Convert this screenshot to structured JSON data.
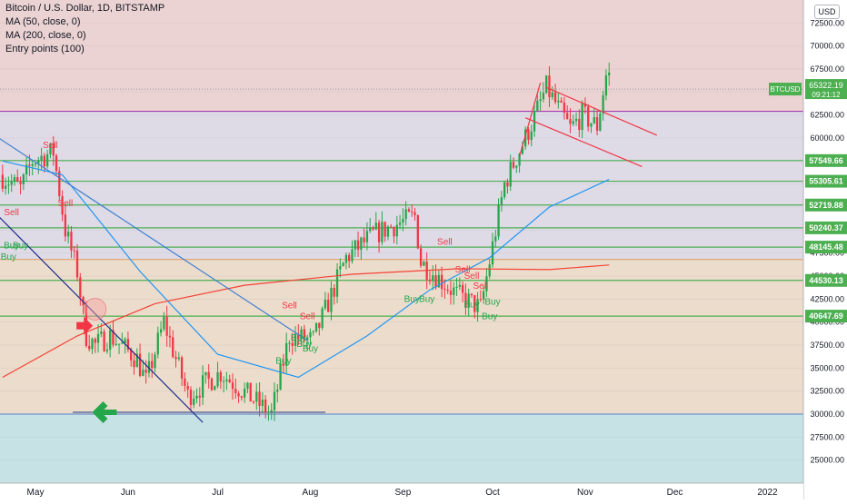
{
  "legend": {
    "title": "Bitcoin / U.S. Dollar, 1D, BITSTAMP",
    "ma50": "MA (50, close, 0)",
    "ma200": "MA (200, close, 0)",
    "entry": "Entry points (100)"
  },
  "currency_button": "USD",
  "price_tag": {
    "symbol": "BTCUSD",
    "price": "65322.19",
    "countdown": "09:21:12",
    "value": 65322.19
  },
  "chart_data": {
    "type": "candlestick",
    "title": "Bitcoin / U.S. Dollar, 1D, BITSTAMP",
    "ylim": [
      22500,
      75000
    ],
    "y_ticks": [
      25000,
      27500,
      30000,
      32500,
      35000,
      37500,
      40000,
      42500,
      45000,
      47500,
      50000,
      52500,
      55000,
      57500,
      60000,
      62500,
      65000,
      67500,
      70000,
      72500
    ],
    "x_ticks": [
      "May",
      "Jun",
      "Jul",
      "Aug",
      "Sep",
      "Oct",
      "Nov",
      "Dec",
      "2022"
    ],
    "levels": [
      {
        "value": 57549.66,
        "label": "57549.66"
      },
      {
        "value": 55305.61,
        "label": "55305.61"
      },
      {
        "value": 52719.88,
        "label": "52719.88"
      },
      {
        "value": 50240.37,
        "label": "50240.37"
      },
      {
        "value": 48145.48,
        "label": "48145.48"
      },
      {
        "value": 44530.13,
        "label": "44530.13"
      },
      {
        "value": 40647.69,
        "label": "40647.69"
      }
    ],
    "support_line": 30000,
    "zones": [
      {
        "from": 62900,
        "to": 75000,
        "color": "#ebd3d3"
      },
      {
        "from": 46800,
        "to": 62900,
        "color": "#dedbe6"
      },
      {
        "from": 30000,
        "to": 46800,
        "color": "#ebdccc"
      },
      {
        "from": 22500,
        "to": 30000,
        "color": "#c6e2e4"
      }
    ],
    "series": [
      {
        "name": "BTCUSD",
        "ohlc_keyframes": [
          {
            "date": "2021-04-20",
            "price": 56000
          },
          {
            "date": "2021-04-27",
            "price": 54500
          },
          {
            "date": "2021-05-01",
            "price": 57500
          },
          {
            "date": "2021-05-08",
            "price": 58500
          },
          {
            "date": "2021-05-12",
            "price": 50000
          },
          {
            "date": "2021-05-16",
            "price": 45500
          },
          {
            "date": "2021-05-19",
            "price": 38500
          },
          {
            "date": "2021-05-22",
            "price": 37500
          },
          {
            "date": "2021-05-27",
            "price": 38500
          },
          {
            "date": "2021-06-05",
            "price": 36000
          },
          {
            "date": "2021-06-08",
            "price": 33500
          },
          {
            "date": "2021-06-14",
            "price": 40000
          },
          {
            "date": "2021-06-22",
            "price": 32000
          },
          {
            "date": "2021-07-03",
            "price": 34500
          },
          {
            "date": "2021-07-20",
            "price": 30000
          },
          {
            "date": "2021-07-26",
            "price": 38500
          },
          {
            "date": "2021-08-03",
            "price": 38000
          },
          {
            "date": "2021-08-14",
            "price": 47000
          },
          {
            "date": "2021-08-23",
            "price": 49500
          },
          {
            "date": "2021-09-06",
            "price": 51500
          },
          {
            "date": "2021-09-08",
            "price": 46500
          },
          {
            "date": "2021-09-20",
            "price": 43000
          },
          {
            "date": "2021-09-28",
            "price": 41500
          },
          {
            "date": "2021-10-06",
            "price": 55000
          },
          {
            "date": "2021-10-15",
            "price": 61500
          },
          {
            "date": "2021-10-20",
            "price": 65500
          },
          {
            "date": "2021-10-28",
            "price": 61000
          },
          {
            "date": "2021-11-01",
            "price": 62500
          },
          {
            "date": "2021-11-06",
            "price": 61300
          },
          {
            "date": "2021-11-09",
            "price": 66800
          }
        ]
      },
      {
        "name": "MA (50, close, 0)",
        "points": [
          [
            "2021-04-20",
            57500
          ],
          [
            "2021-05-10",
            56000
          ],
          [
            "2021-06-05",
            45500
          ],
          [
            "2021-07-01",
            36500
          ],
          [
            "2021-07-28",
            34000
          ],
          [
            "2021-08-20",
            38500
          ],
          [
            "2021-09-10",
            43500
          ],
          [
            "2021-09-30",
            47000
          ],
          [
            "2021-10-20",
            52500
          ],
          [
            "2021-11-09",
            55500
          ]
        ]
      },
      {
        "name": "MA (200, close, 0)",
        "points": [
          [
            "2021-04-20",
            34000
          ],
          [
            "2021-05-15",
            38500
          ],
          [
            "2021-06-10",
            42000
          ],
          [
            "2021-07-10",
            44000
          ],
          [
            "2021-08-15",
            45200
          ],
          [
            "2021-09-20",
            45800
          ],
          [
            "2021-10-20",
            45700
          ],
          [
            "2021-11-09",
            46200
          ]
        ]
      }
    ],
    "trendlines": [
      {
        "from": [
          "2021-04-14",
          61000
        ],
        "to": [
          "2021-07-31",
          38000
        ]
      },
      {
        "from": [
          "2021-04-11",
          54000
        ],
        "to": [
          "2021-06-26",
          29100
        ]
      },
      {
        "from": [
          "2021-10-10",
          58000
        ],
        "to": [
          "2021-10-17",
          66000
        ]
      },
      {
        "from": [
          "2021-10-19",
          65500
        ],
        "to": [
          "2021-11-25",
          60300
        ]
      },
      {
        "from": [
          "2021-10-12",
          62200
        ],
        "to": [
          "2021-11-20",
          56900
        ]
      }
    ],
    "signals": [
      {
        "date": "2021-05-06",
        "price": 58900,
        "label": "Sell"
      },
      {
        "date": "2021-04-23",
        "price": 51600,
        "label": "Sell"
      },
      {
        "date": "2021-05-11",
        "price": 52600,
        "label": "Sell"
      },
      {
        "date": "2021-04-23",
        "price": 48000,
        "label": "Buy"
      },
      {
        "date": "2021-04-26",
        "price": 48000,
        "label": "Buy"
      },
      {
        "date": "2021-04-22",
        "price": 46800,
        "label": "Buy"
      },
      {
        "date": "2021-07-25",
        "price": 41500,
        "label": "Sell"
      },
      {
        "date": "2021-07-31",
        "price": 40300,
        "label": "Sell"
      },
      {
        "date": "2021-07-28",
        "price": 38000,
        "label": "Buy"
      },
      {
        "date": "2021-07-30",
        "price": 37300,
        "label": "Buy"
      },
      {
        "date": "2021-08-01",
        "price": 36800,
        "label": "Buy"
      },
      {
        "date": "2021-07-23",
        "price": 35500,
        "label": "Buy"
      },
      {
        "date": "2021-09-15",
        "price": 48400,
        "label": "Sell"
      },
      {
        "date": "2021-09-21",
        "price": 45400,
        "label": "Sell"
      },
      {
        "date": "2021-09-24",
        "price": 44700,
        "label": "Sell"
      },
      {
        "date": "2021-09-27",
        "price": 43600,
        "label": "Sell"
      },
      {
        "date": "2021-09-04",
        "price": 42200,
        "label": "Buy"
      },
      {
        "date": "2021-09-09",
        "price": 42200,
        "label": "Buy"
      },
      {
        "date": "2021-09-24",
        "price": 41600,
        "label": "Buy"
      },
      {
        "date": "2021-10-01",
        "price": 41900,
        "label": "Buy"
      },
      {
        "date": "2021-09-30",
        "price": 40300,
        "label": "Buy"
      }
    ],
    "markers": [
      {
        "type": "arrow-right",
        "date": "2021-05-19",
        "price": 39600,
        "color": "#f23645"
      },
      {
        "type": "arrow-left",
        "date": "2021-05-20",
        "price": 30200,
        "color": "#26a64b"
      },
      {
        "type": "circle",
        "date": "2021-05-21",
        "price": 41400,
        "color": "#f6a0a0"
      }
    ]
  },
  "colors": {
    "up": "#26a64b",
    "down": "#f23645",
    "level": "#4caf50",
    "ma50": "#2196f3",
    "ma200": "#f44336",
    "purple_line": "#9c27b0",
    "tag_green": "#4caf50"
  }
}
